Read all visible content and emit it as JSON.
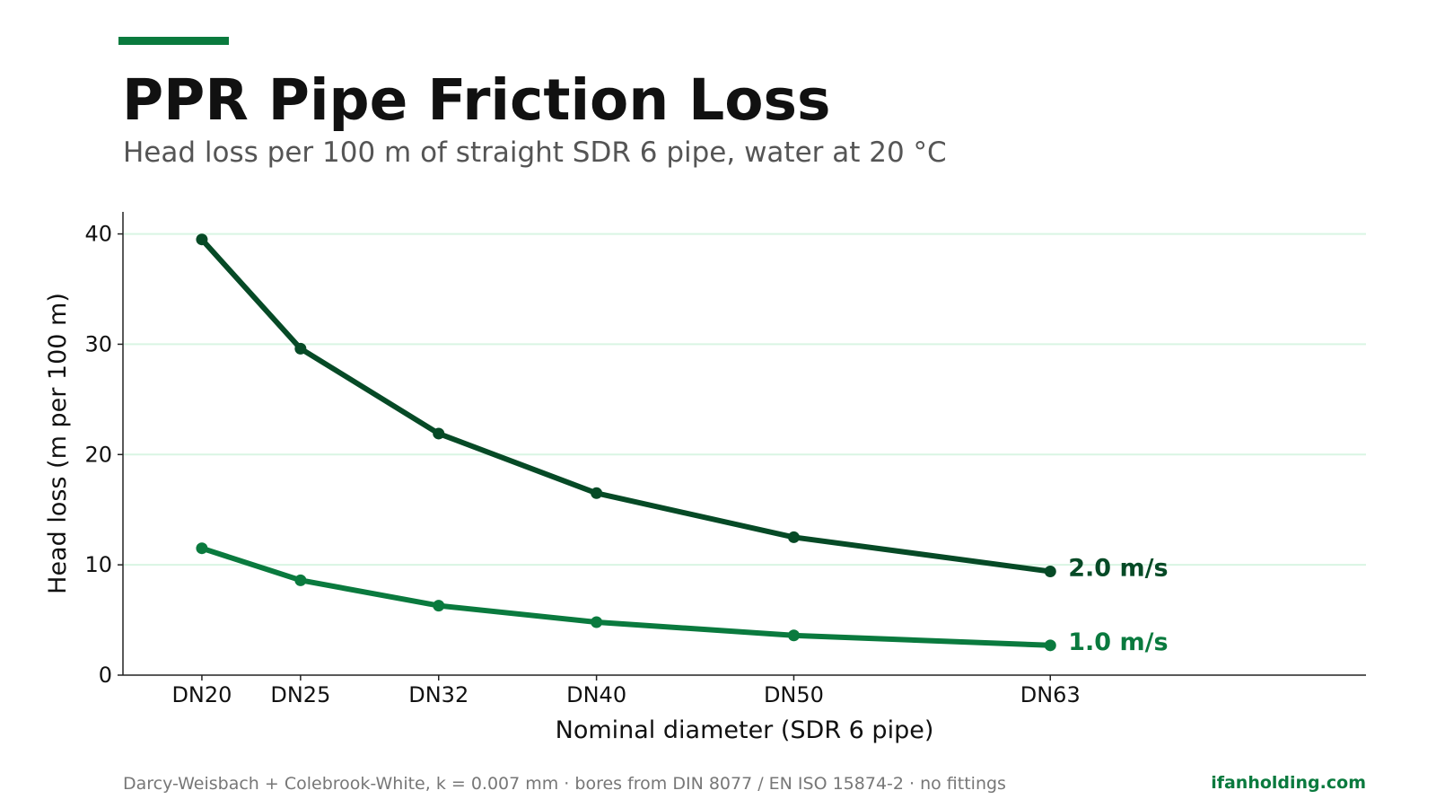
{
  "header": {
    "title": "PPR Pipe Friction Loss",
    "subtitle": "Head loss per 100 m of straight SDR 6 pipe, water at 20 °C"
  },
  "footer": {
    "note": "Darcy-Weisbach + Colebrook-White, k = 0.007 mm · bores from DIN 8077 / EN ISO 15874-2 · no fittings",
    "brand": "ifanholding.com"
  },
  "colors": {
    "accent": "#0a7a3e",
    "series_dark": "#064a26",
    "series_light": "#0a7a3e",
    "grid": "#d9f5e3",
    "axis": "#222222",
    "text": "#111111"
  },
  "chart_data": {
    "type": "line",
    "xlabel": "Nominal diameter (SDR 6 pipe)",
    "ylabel": "Head loss (m per 100 m)",
    "ylim": [
      0,
      42
    ],
    "xlim": [
      16,
      79
    ],
    "yticks": [
      0,
      10,
      20,
      30,
      40
    ],
    "grid": true,
    "legend": "inline labels at line ends",
    "x": [
      20,
      25,
      32,
      40,
      50,
      63
    ],
    "categories": [
      "DN20",
      "DN25",
      "DN32",
      "DN40",
      "DN50",
      "DN63"
    ],
    "series": [
      {
        "name": "2.0 m/s",
        "color": "#064a26",
        "values": [
          39.5,
          29.6,
          21.9,
          16.5,
          12.5,
          9.4
        ]
      },
      {
        "name": "1.0 m/s",
        "color": "#0a7a3e",
        "values": [
          11.5,
          8.6,
          6.3,
          4.8,
          3.6,
          2.7
        ]
      }
    ]
  }
}
